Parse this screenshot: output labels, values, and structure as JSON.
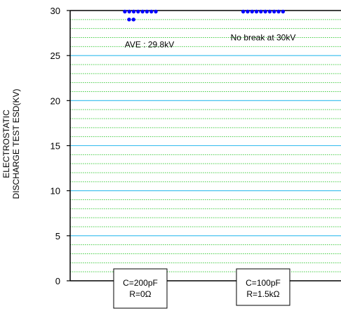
{
  "chart_data": {
    "type": "scatter",
    "title": "",
    "ylabel": [
      "ELECTROSTATIC",
      "DISCHARGE TEST ESD(KV)"
    ],
    "ylim": [
      0,
      30
    ],
    "yticks": [
      0,
      5,
      10,
      15,
      20,
      25,
      30
    ],
    "grid": {
      "major_step": 5,
      "minor_step": 1,
      "major_color": "#33bbee",
      "minor_color": "#44cc44"
    },
    "point_color": "#0000ff",
    "categories": [
      {
        "label_lines": [
          "C=200pF",
          "R=0Ω"
        ]
      },
      {
        "label_lines": [
          "C=100pF",
          "R=1.5kΩ"
        ]
      }
    ],
    "series": [
      {
        "points": [
          {
            "category": 0,
            "y": 30,
            "count": 8
          },
          {
            "category": 0,
            "y": 29,
            "count": 2
          },
          {
            "category": 1,
            "y": 30,
            "count": 10
          }
        ]
      }
    ],
    "annotations": [
      {
        "text": "AVE : 29.8kV",
        "category": 0,
        "y": 25.9
      },
      {
        "text": "No break at 30kV",
        "category": 1,
        "y": 26.7
      }
    ]
  }
}
